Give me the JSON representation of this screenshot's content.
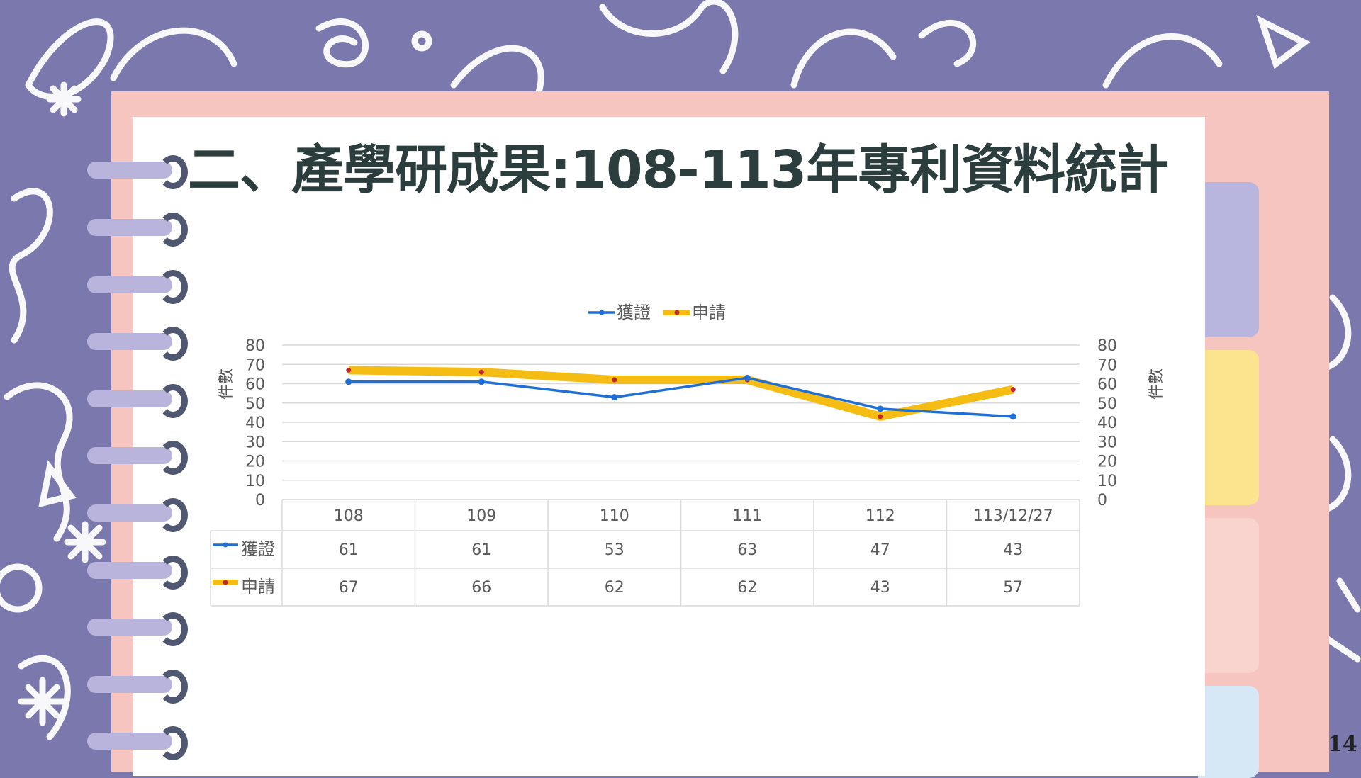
{
  "title": "二、產學研成果:108-113年專利資料統計",
  "page_number": "14",
  "colors": {
    "background": "#7b78ad",
    "panel": "#f7c5bf",
    "series_granted": "#1f6fd6",
    "series_applied": "#f5bd14",
    "applied_marker": "#c0282d"
  },
  "chart_data": {
    "type": "line",
    "categories": [
      "108",
      "109",
      "110",
      "111",
      "112",
      "113/12/27"
    ],
    "series": [
      {
        "name": "獲證",
        "values": [
          61,
          61,
          53,
          63,
          47,
          43
        ]
      },
      {
        "name": "申請",
        "values": [
          67,
          66,
          62,
          62,
          43,
          57
        ]
      }
    ],
    "ylabel": "件數",
    "y2label": "件數",
    "ylim": [
      0,
      80
    ],
    "yticks": [
      0,
      10,
      20,
      30,
      40,
      50,
      60,
      70,
      80
    ],
    "grid": true,
    "legend": "top",
    "data_table": true
  }
}
